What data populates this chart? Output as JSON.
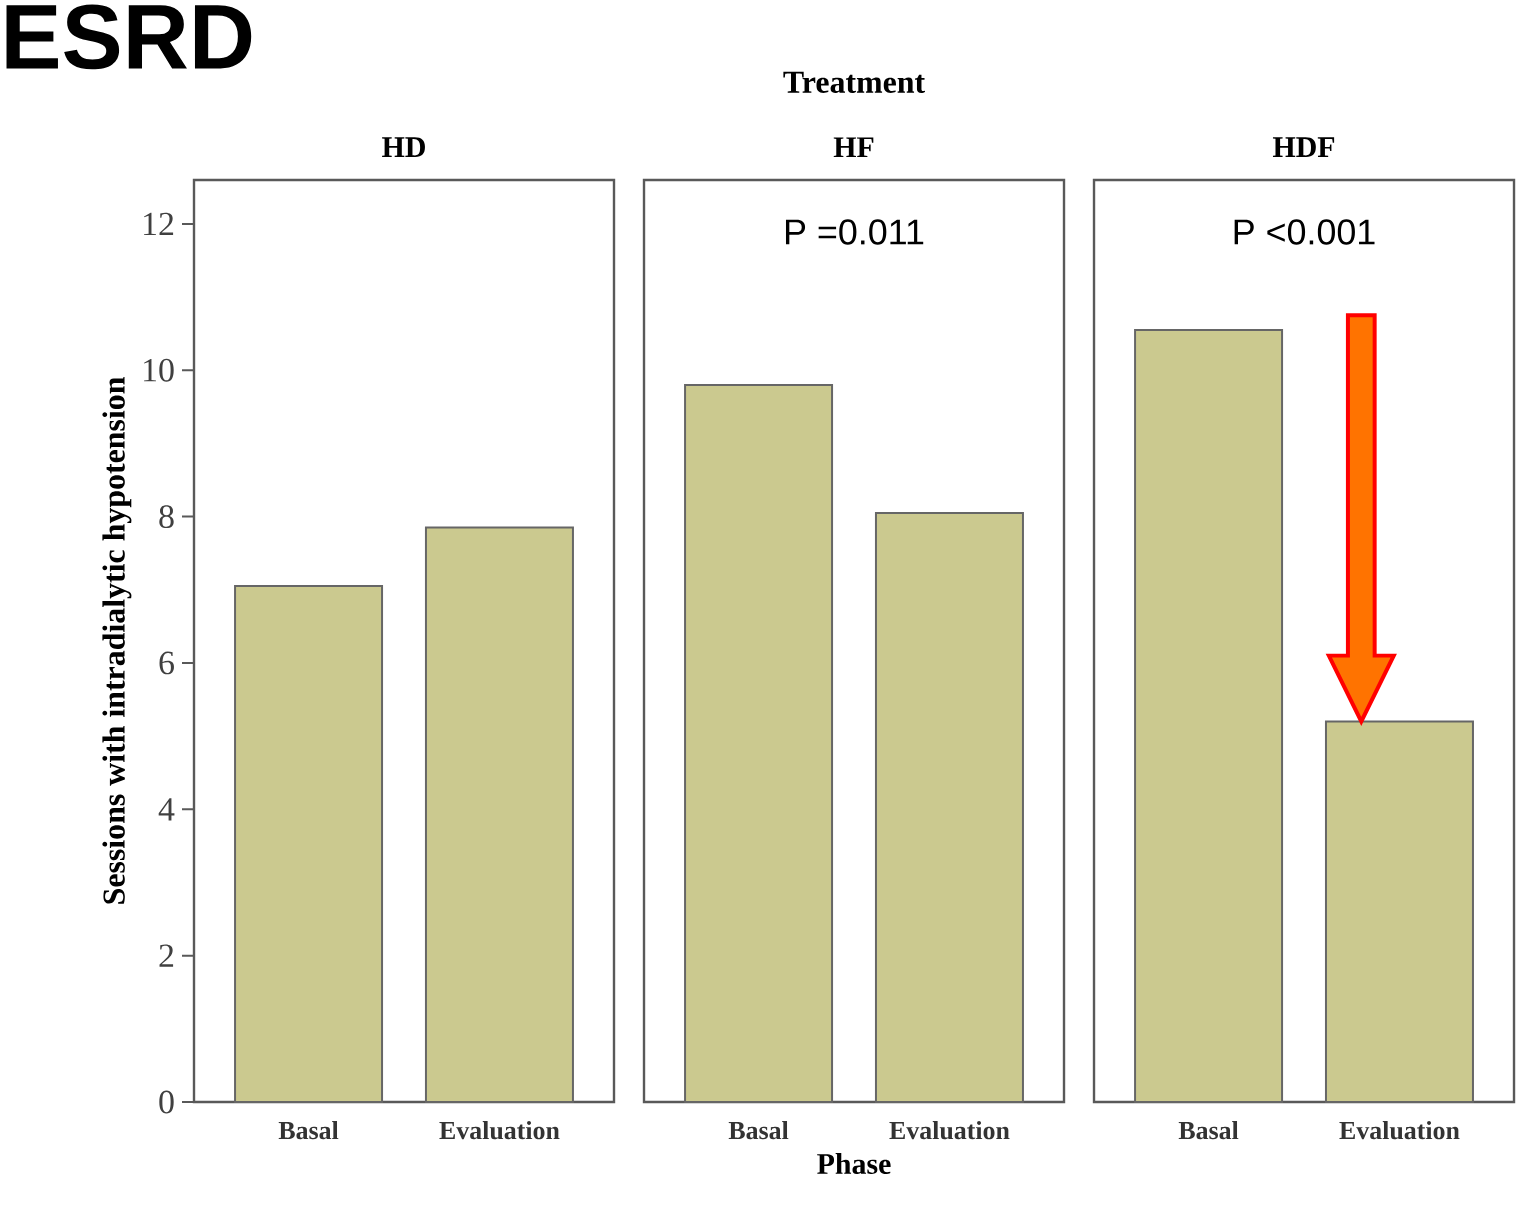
{
  "chart_data": [
    {
      "type": "bar",
      "title": "HD",
      "ylabel": "Sessions with intradialytic hypotension",
      "categories": [
        "Basal",
        "Evaluation"
      ],
      "values": [
        7.05,
        7.85
      ],
      "color": "#cbc98f",
      "ylim": [
        0,
        12.6
      ],
      "yticks": [
        0,
        2,
        4,
        6,
        8,
        10,
        12
      ],
      "annotations": [
        "ESRD"
      ]
    },
    {
      "type": "bar",
      "title": "HF",
      "subtitle": "Treatment",
      "xlabel": "Phase",
      "categories": [
        "Basal",
        "Evaluation"
      ],
      "values": [
        9.8,
        8.05
      ],
      "color": "#cbc98f",
      "ylim": [
        0,
        12.6
      ],
      "tick_labels": "x",
      "annotations": [
        "P =0.011"
      ]
    },
    {
      "type": "bar",
      "title": "HDF",
      "categories": [
        "Basal",
        "Evaluation"
      ],
      "values": [
        10.55,
        5.2
      ],
      "color": "#cbc98f",
      "ylim": [
        0,
        12.6
      ],
      "tick_labels": "x",
      "annotations": [
        "P <0.001"
      ]
    }
  ]
}
